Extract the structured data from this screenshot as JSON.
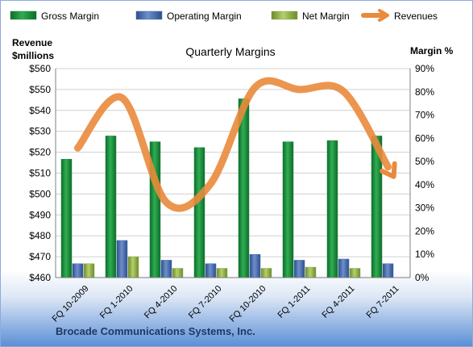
{
  "chart_data": {
    "type": "bar",
    "title": "Quarterly Margins",
    "company": "Brocade Communications Systems, Inc.",
    "y_left_label_line1": "Revenue",
    "y_left_label_line2": "$millions",
    "y_right_label": "Margin %",
    "categories": [
      "FQ 10-2009",
      "FQ 1-2010",
      "FQ 4-2010",
      "FQ 7-2010",
      "FQ 10-2010",
      "FQ 1-2011",
      "FQ 4-2011",
      "FQ 7-2011"
    ],
    "left_axis": {
      "min": 460,
      "max": 560,
      "step": 10,
      "tick_prefix": "$"
    },
    "right_axis": {
      "min": 0,
      "max": 90,
      "step": 10,
      "tick_suffix": "%"
    },
    "series": [
      {
        "name": "Gross Margin",
        "axis": "right",
        "kind": "bar",
        "color": "#1e8c3e",
        "values": [
          51,
          61,
          58.5,
          56,
          77,
          58.5,
          59,
          61
        ]
      },
      {
        "name": "Operating Margin",
        "axis": "right",
        "kind": "bar",
        "color": "#4a6fb5",
        "values": [
          6,
          16,
          7.5,
          6,
          10,
          7.5,
          8,
          6
        ]
      },
      {
        "name": "Net Margin",
        "axis": "right",
        "kind": "bar",
        "color": "#8fb04a",
        "values": [
          6,
          9,
          4,
          4,
          4,
          4.5,
          4,
          null
        ]
      },
      {
        "name": "Revenues",
        "axis": "left",
        "kind": "line",
        "color": "#ea8a3c",
        "values": [
          522,
          546,
          496,
          505,
          551,
          550,
          549,
          513
        ]
      }
    ],
    "grid": true,
    "legend_position": "top"
  }
}
